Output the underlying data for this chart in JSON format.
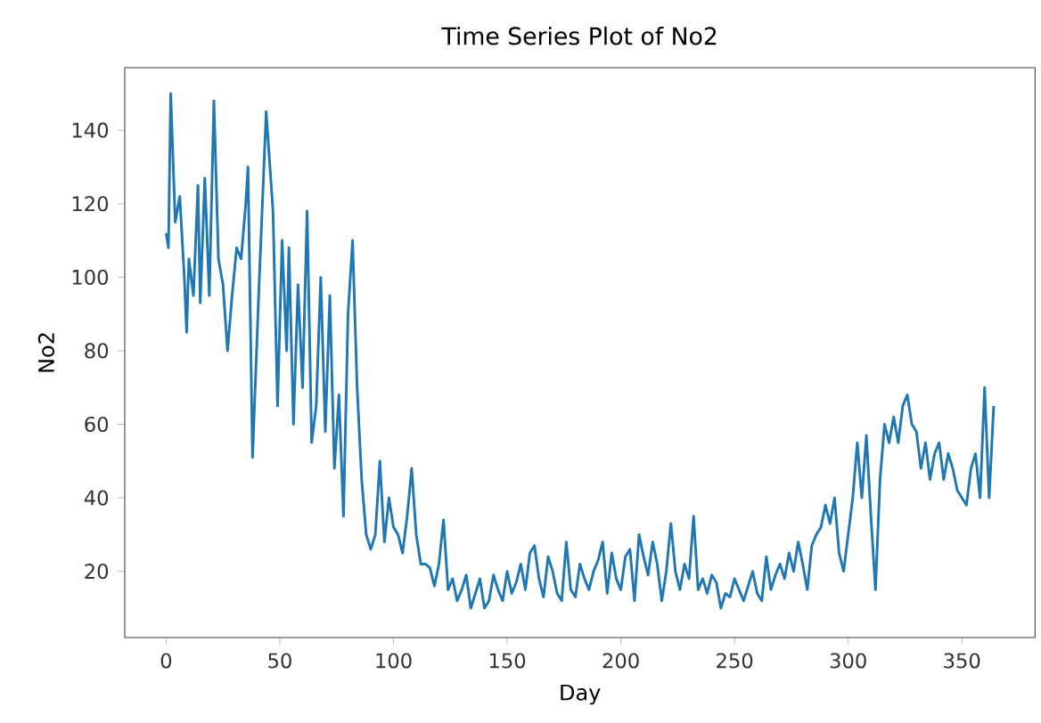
{
  "chart_data": {
    "type": "line",
    "title": "Time Series Plot of No2",
    "xlabel": "Day",
    "ylabel": "No2",
    "x": [
      0,
      1,
      2,
      4,
      6,
      8,
      9,
      10,
      12,
      14,
      15,
      17,
      19,
      21,
      23,
      25,
      27,
      29,
      31,
      33,
      35,
      36,
      38,
      41,
      44,
      47,
      49,
      51,
      53,
      54,
      56,
      58,
      60,
      62,
      64,
      66,
      68,
      70,
      72,
      74,
      76,
      78,
      80,
      82,
      84,
      86,
      88,
      90,
      92,
      94,
      96,
      98,
      100,
      102,
      104,
      106,
      108,
      110,
      112,
      114,
      116,
      118,
      120,
      122,
      124,
      126,
      128,
      130,
      132,
      134,
      136,
      138,
      140,
      142,
      144,
      146,
      148,
      150,
      152,
      154,
      156,
      158,
      160,
      162,
      164,
      166,
      168,
      170,
      172,
      174,
      176,
      178,
      180,
      182,
      184,
      186,
      188,
      190,
      192,
      194,
      196,
      198,
      200,
      202,
      204,
      206,
      208,
      210,
      212,
      214,
      216,
      218,
      220,
      222,
      224,
      226,
      228,
      230,
      232,
      234,
      236,
      238,
      240,
      242,
      244,
      246,
      248,
      250,
      252,
      254,
      256,
      258,
      260,
      262,
      264,
      266,
      268,
      270,
      272,
      274,
      276,
      278,
      280,
      282,
      284,
      286,
      288,
      290,
      292,
      294,
      296,
      298,
      300,
      302,
      304,
      306,
      308,
      310,
      312,
      314,
      316,
      318,
      320,
      322,
      324,
      326,
      328,
      330,
      332,
      334,
      336,
      338,
      340,
      342,
      344,
      346,
      348,
      350,
      352,
      354,
      356,
      358,
      360,
      362,
      364
    ],
    "series": [
      {
        "color": "#1f77b4",
        "values": [
          112,
          108,
          150,
          115,
          122,
          100,
          85,
          105,
          95,
          125,
          93,
          127,
          95,
          148,
          105,
          98,
          80,
          95,
          108,
          105,
          120,
          130,
          51,
          100,
          145,
          118,
          65,
          110,
          80,
          108,
          60,
          98,
          70,
          118,
          55,
          65,
          100,
          58,
          95,
          48,
          68,
          35,
          90,
          110,
          70,
          45,
          30,
          26,
          30,
          50,
          28,
          40,
          32,
          30,
          25,
          35,
          48,
          30,
          22,
          22,
          21,
          16,
          22,
          34,
          15,
          18,
          12,
          15,
          19,
          10,
          14,
          18,
          10,
          12,
          19,
          15,
          12,
          20,
          14,
          17,
          22,
          15,
          25,
          27,
          18,
          13,
          24,
          20,
          14,
          12,
          28,
          15,
          13,
          22,
          18,
          15,
          20,
          23,
          28,
          14,
          25,
          18,
          15,
          24,
          26,
          12,
          30,
          24,
          19,
          28,
          22,
          12,
          20,
          33,
          20,
          15,
          22,
          18,
          35,
          15,
          18,
          14,
          19,
          17,
          10,
          14,
          13,
          18,
          15,
          12,
          16,
          20,
          14,
          12,
          24,
          15,
          19,
          22,
          18,
          25,
          20,
          28,
          22,
          15,
          27,
          30,
          32,
          38,
          33,
          40,
          25,
          20,
          30,
          40,
          55,
          40,
          57,
          35,
          15,
          45,
          60,
          55,
          62,
          55,
          65,
          68,
          60,
          58,
          48,
          55,
          45,
          52,
          55,
          45,
          52,
          48,
          42,
          40,
          38,
          48,
          52,
          40,
          70,
          40,
          65
        ]
      }
    ],
    "xlim": [
      -18.2,
      382.2
    ],
    "ylim": [
      2,
      157
    ],
    "xticks": [
      0,
      50,
      100,
      150,
      200,
      250,
      300,
      350
    ],
    "yticks": [
      20,
      40,
      60,
      80,
      100,
      120,
      140
    ],
    "grid": false
  }
}
